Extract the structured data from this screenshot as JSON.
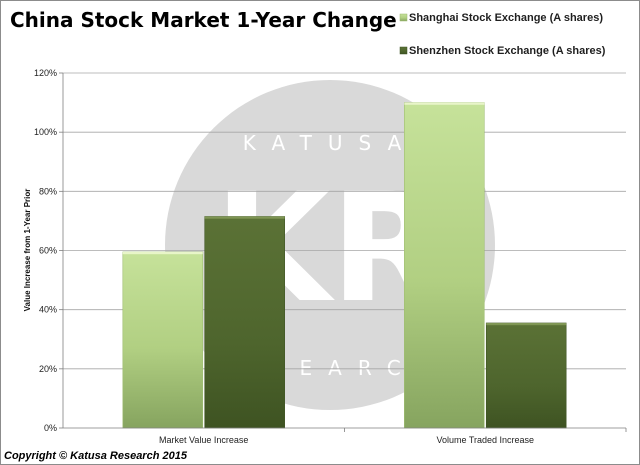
{
  "chart_data": {
    "type": "bar",
    "title": "China Stock Market 1-Year Change",
    "ylabel": "Value Increase from 1-Year Prior",
    "xlabel": "",
    "categories": [
      "Market Value Increase",
      "Volume Traded Increase"
    ],
    "series": [
      {
        "name": "Shanghai Stock Exchange (A shares)",
        "values": [
          59.5,
          110
        ],
        "color": "#b9d78a"
      },
      {
        "name": "Shenzhen Stock Exchange (A shares)",
        "values": [
          71.5,
          35.5
        ],
        "color": "#556b2f"
      }
    ],
    "ylim": [
      0,
      120
    ],
    "yticks": [
      "0%",
      "20%",
      "40%",
      "60%",
      "80%",
      "100%",
      "120%"
    ],
    "grid": true,
    "legend_position": "top-right"
  },
  "watermark": {
    "logo": "KR",
    "top_text": "KATUSA",
    "bottom_text": "RESEARCH"
  },
  "footer": "Copyright © Katusa Research 2015"
}
